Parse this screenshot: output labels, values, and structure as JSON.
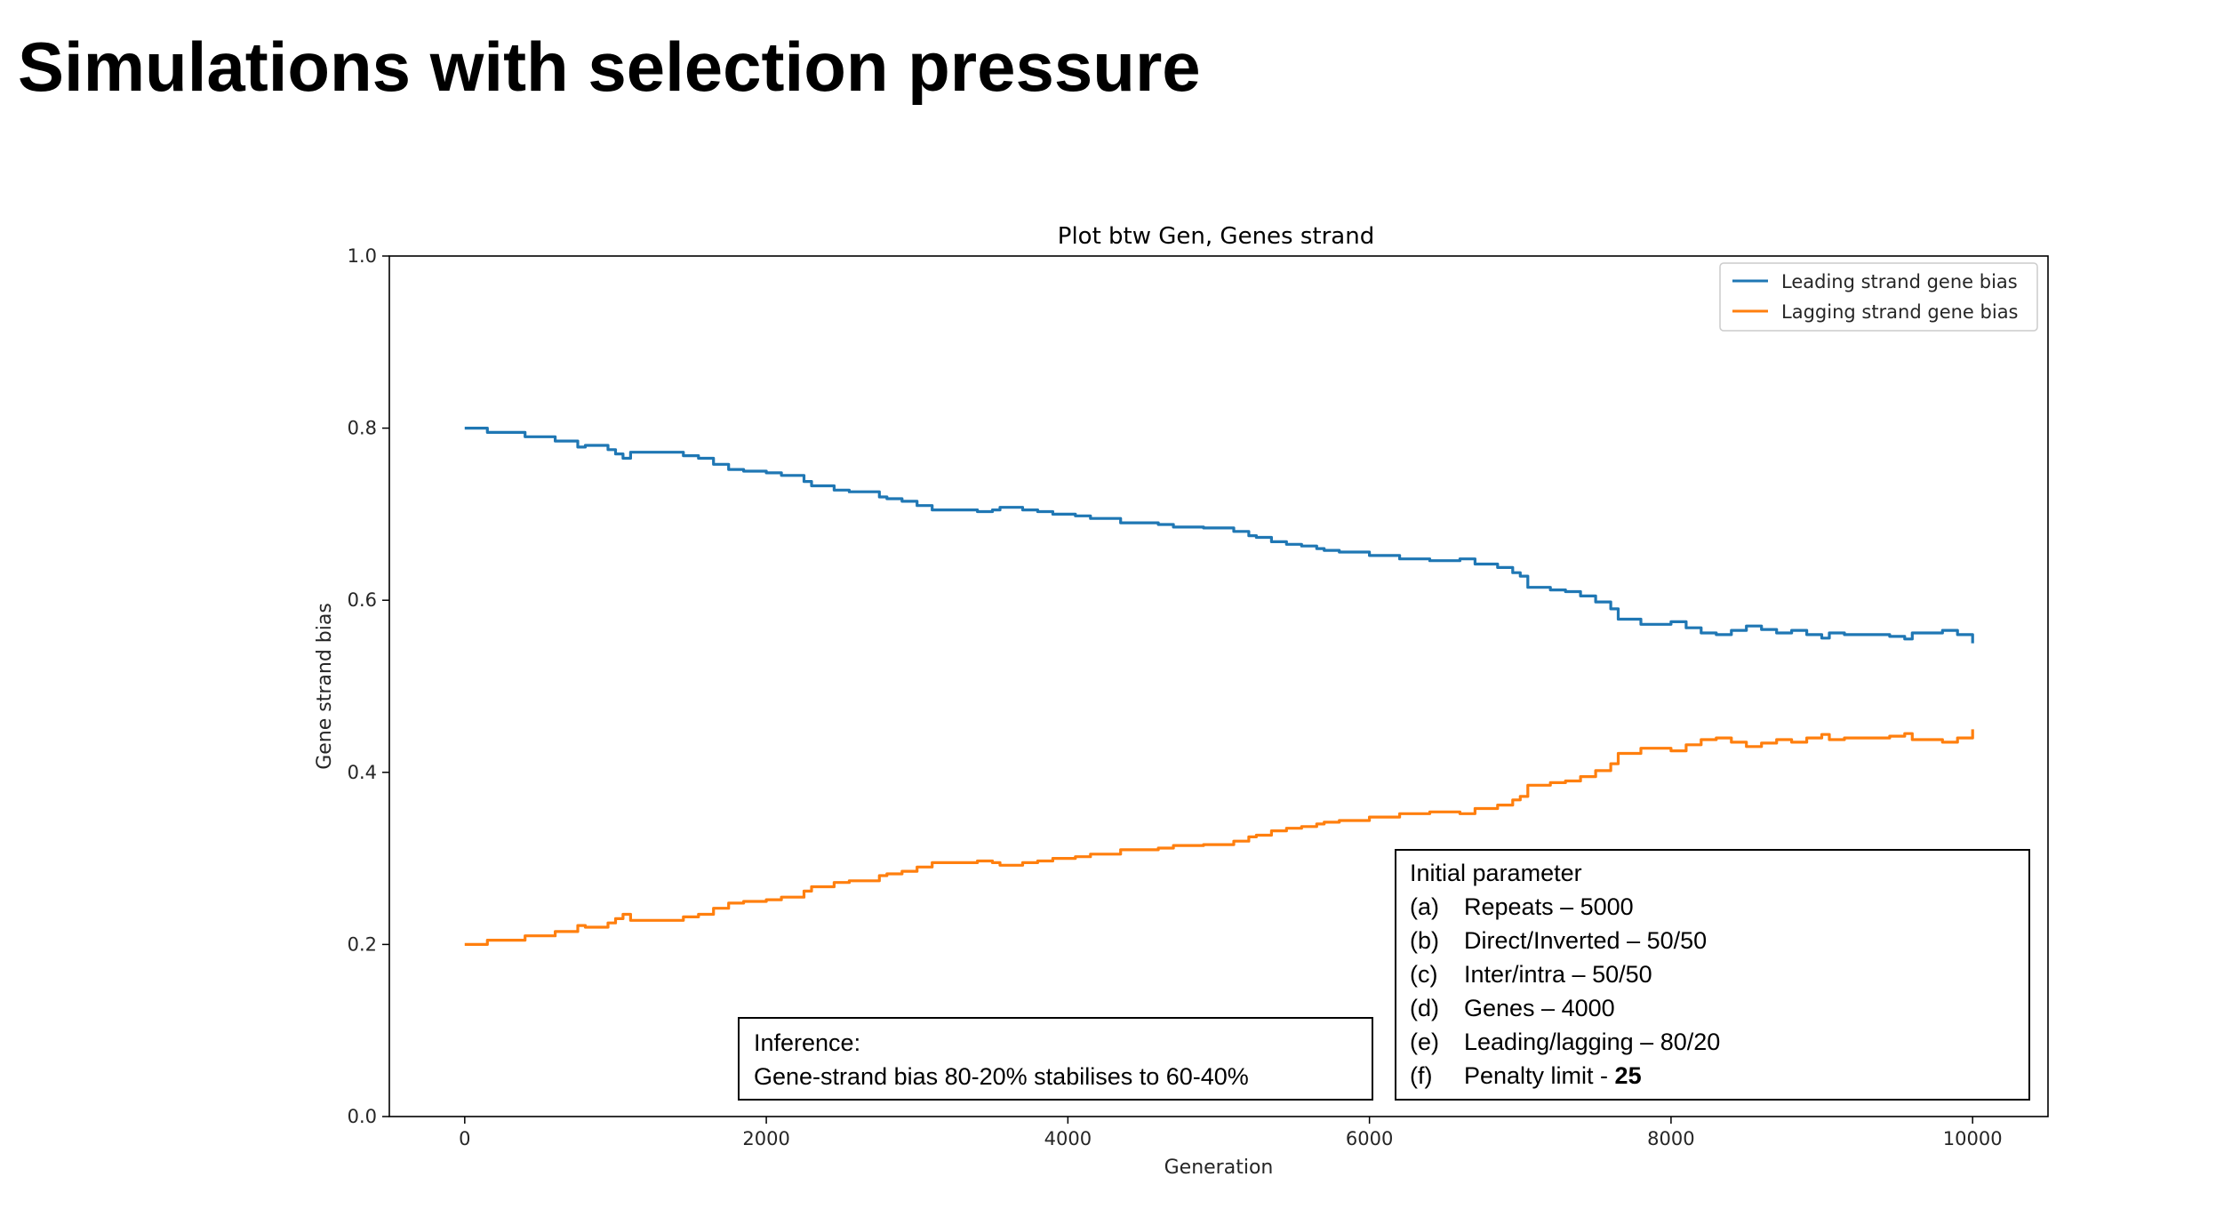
{
  "slide": {
    "title": "Simulations with selection pressure"
  },
  "chart_data": {
    "type": "line",
    "title": "Plot btw Gen, Genes strand",
    "xlabel": "Generation",
    "ylabel": "Gene strand bias",
    "xlim": [
      -500,
      10500
    ],
    "ylim": [
      0.0,
      1.0
    ],
    "xticks": [
      0,
      2000,
      4000,
      6000,
      8000,
      10000
    ],
    "xtick_labels": [
      "0",
      "2000",
      "4000",
      "6000",
      "8000",
      "10000"
    ],
    "yticks": [
      0.0,
      0.2,
      0.4,
      0.6,
      0.8,
      1.0
    ],
    "ytick_labels": [
      "0.0",
      "0.2",
      "0.4",
      "0.6",
      "0.8",
      "1.0"
    ],
    "grid": false,
    "legend_position": "top-right",
    "series": [
      {
        "name": "Leading strand gene bias",
        "color": "#1f77b4",
        "x": [
          0,
          150,
          400,
          600,
          750,
          800,
          950,
          1000,
          1050,
          1100,
          1300,
          1450,
          1550,
          1650,
          1750,
          1850,
          2000,
          2100,
          2200,
          2250,
          2300,
          2450,
          2550,
          2750,
          2800,
          2900,
          3000,
          3100,
          3250,
          3400,
          3500,
          3550,
          3650,
          3700,
          3800,
          3900,
          4050,
          4150,
          4350,
          4600,
          4700,
          4900,
          5100,
          5200,
          5250,
          5350,
          5450,
          5550,
          5650,
          5700,
          5800,
          6000,
          6200,
          6400,
          6600,
          6700,
          6800,
          6850,
          6950,
          7000,
          7050,
          7200,
          7300,
          7400,
          7500,
          7600,
          7650,
          7800,
          7950,
          8000,
          8100,
          8200,
          8300,
          8400,
          8500,
          8600,
          8700,
          8800,
          8900,
          9000,
          9050,
          9150,
          9300,
          9450,
          9550,
          9600,
          9800,
          9900,
          10000
        ],
        "values": [
          0.8,
          0.795,
          0.79,
          0.785,
          0.778,
          0.78,
          0.775,
          0.77,
          0.765,
          0.772,
          0.772,
          0.768,
          0.765,
          0.758,
          0.752,
          0.75,
          0.748,
          0.745,
          0.745,
          0.738,
          0.733,
          0.728,
          0.726,
          0.72,
          0.718,
          0.715,
          0.71,
          0.705,
          0.705,
          0.703,
          0.705,
          0.708,
          0.708,
          0.705,
          0.703,
          0.7,
          0.698,
          0.695,
          0.69,
          0.688,
          0.685,
          0.684,
          0.68,
          0.675,
          0.673,
          0.668,
          0.665,
          0.663,
          0.66,
          0.658,
          0.656,
          0.652,
          0.648,
          0.646,
          0.648,
          0.642,
          0.642,
          0.638,
          0.632,
          0.628,
          0.615,
          0.612,
          0.61,
          0.605,
          0.598,
          0.59,
          0.578,
          0.572,
          0.572,
          0.575,
          0.568,
          0.562,
          0.56,
          0.565,
          0.57,
          0.566,
          0.562,
          0.565,
          0.56,
          0.556,
          0.562,
          0.56,
          0.56,
          0.558,
          0.555,
          0.562,
          0.565,
          0.56,
          0.55
        ]
      },
      {
        "name": "Lagging strand gene bias",
        "color": "#ff7f0e",
        "x": [
          0,
          150,
          400,
          600,
          750,
          800,
          950,
          1000,
          1050,
          1100,
          1300,
          1450,
          1550,
          1650,
          1750,
          1850,
          2000,
          2100,
          2200,
          2250,
          2300,
          2450,
          2550,
          2750,
          2800,
          2900,
          3000,
          3100,
          3250,
          3400,
          3500,
          3550,
          3650,
          3700,
          3800,
          3900,
          4050,
          4150,
          4350,
          4600,
          4700,
          4900,
          5100,
          5200,
          5250,
          5350,
          5450,
          5550,
          5650,
          5700,
          5800,
          6000,
          6200,
          6400,
          6600,
          6700,
          6800,
          6850,
          6950,
          7000,
          7050,
          7200,
          7300,
          7400,
          7500,
          7600,
          7650,
          7800,
          7950,
          8000,
          8100,
          8200,
          8300,
          8400,
          8500,
          8600,
          8700,
          8800,
          8900,
          9000,
          9050,
          9150,
          9300,
          9450,
          9550,
          9600,
          9800,
          9900,
          10000
        ],
        "values": [
          0.2,
          0.205,
          0.21,
          0.215,
          0.222,
          0.22,
          0.225,
          0.23,
          0.235,
          0.228,
          0.228,
          0.232,
          0.235,
          0.242,
          0.248,
          0.25,
          0.252,
          0.255,
          0.255,
          0.262,
          0.267,
          0.272,
          0.274,
          0.28,
          0.282,
          0.285,
          0.29,
          0.295,
          0.295,
          0.297,
          0.295,
          0.292,
          0.292,
          0.295,
          0.297,
          0.3,
          0.302,
          0.305,
          0.31,
          0.312,
          0.315,
          0.316,
          0.32,
          0.325,
          0.327,
          0.332,
          0.335,
          0.337,
          0.34,
          0.342,
          0.344,
          0.348,
          0.352,
          0.354,
          0.352,
          0.358,
          0.358,
          0.362,
          0.368,
          0.372,
          0.385,
          0.388,
          0.39,
          0.395,
          0.402,
          0.41,
          0.422,
          0.428,
          0.428,
          0.425,
          0.432,
          0.438,
          0.44,
          0.435,
          0.43,
          0.434,
          0.438,
          0.435,
          0.44,
          0.444,
          0.438,
          0.44,
          0.44,
          0.442,
          0.445,
          0.438,
          0.435,
          0.44,
          0.45
        ]
      }
    ],
    "annotations": {
      "inference": {
        "heading": "Inference:",
        "text": "Gene-strand bias 80-20% stabilises to 60-40%"
      },
      "parameters": {
        "heading": "Initial parameter",
        "items": [
          {
            "marker": "(a)",
            "label": "Repeats – 5000",
            "value": ""
          },
          {
            "marker": "(b)",
            "label": "Direct/Inverted – 50/50",
            "value": ""
          },
          {
            "marker": "(c)",
            "label": "Inter/intra – 50/50",
            "value": ""
          },
          {
            "marker": "(d)",
            "label": "Genes – 4000",
            "value": ""
          },
          {
            "marker": "(e)",
            "label": "Leading/lagging – 80/20",
            "value": ""
          },
          {
            "marker": "(f)",
            "label": "Penalty limit - ",
            "value": "25"
          }
        ]
      }
    }
  }
}
